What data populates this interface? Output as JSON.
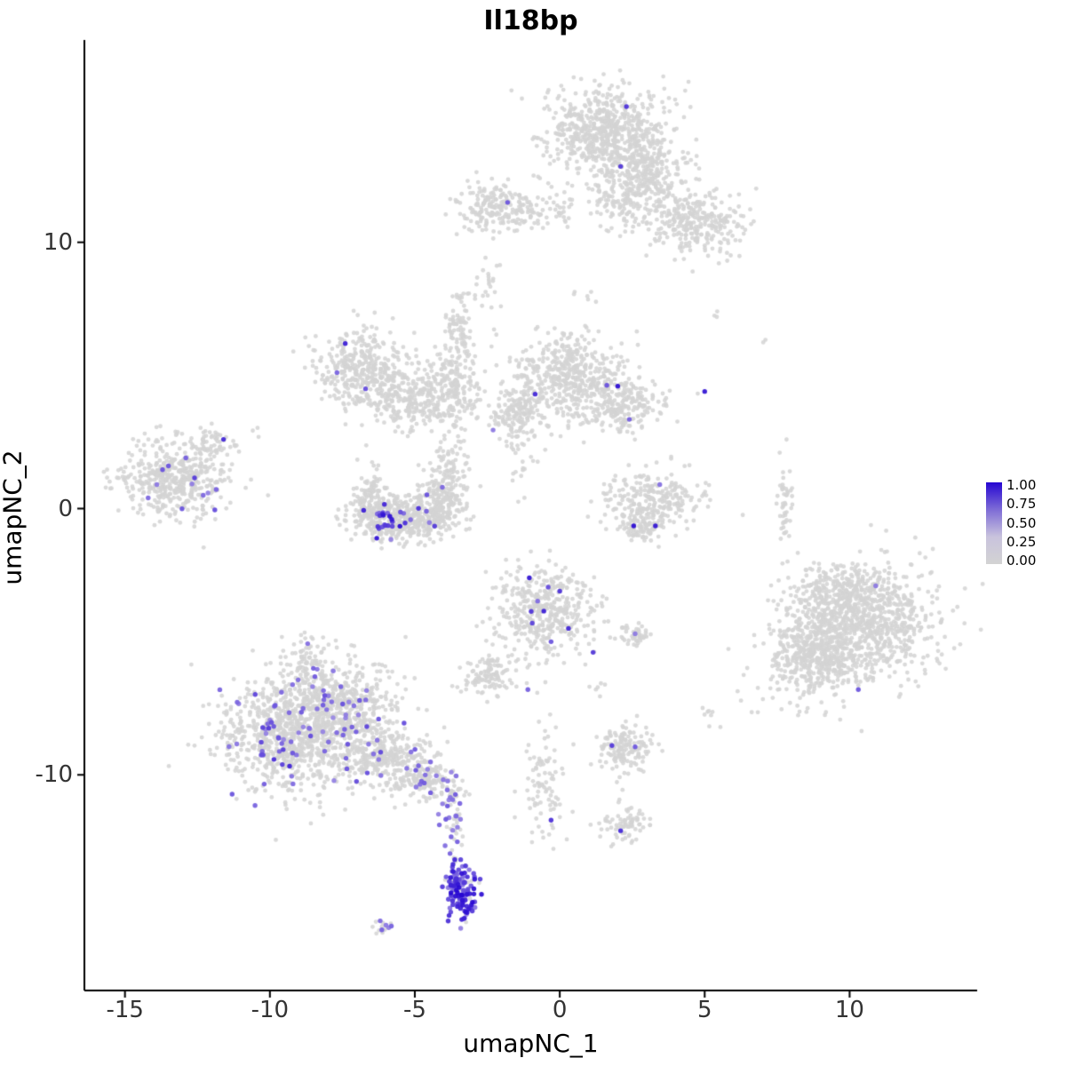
{
  "chart_data": {
    "type": "scatter",
    "title": "Il18bp",
    "xlabel": "umapNC_1",
    "ylabel": "umapNC_2",
    "background": "#ffffff",
    "grid": false,
    "x_domain": [
      -16.4,
      14.4
    ],
    "y_domain": [
      -18.1,
      17.6
    ],
    "xticks": [
      "-15",
      "-10",
      "-5",
      "0",
      "5",
      "10"
    ],
    "xtick_values": [
      -15,
      -10,
      -5,
      0,
      5,
      10
    ],
    "yticks": [
      "-10",
      "0",
      "10"
    ],
    "ytick_values": [
      -10,
      0,
      10
    ],
    "point_color_zero": "#d4d4d4",
    "color_low": "#c4b8ea",
    "color_high": "#2606d2",
    "legend": {
      "labels": [
        "1.00",
        "0.75",
        "0.50",
        "0.25",
        "0.00"
      ],
      "gradient_stops": [
        "#2606d2",
        "#7e6cd6",
        "#c9c3dd",
        "#d3d3d3"
      ]
    },
    "clusters": [
      {
        "name": "top-main",
        "center": [
          1.6,
          14.2
        ],
        "sd": [
          1.05,
          0.85
        ],
        "n": 650,
        "expr_frac": 0,
        "expr_range": [
          0,
          0
        ]
      },
      {
        "name": "top-right-ext",
        "center": [
          3.0,
          12.6
        ],
        "sd": [
          0.75,
          0.75
        ],
        "n": 260,
        "expr_frac": 0,
        "expr_range": [
          0,
          0
        ]
      },
      {
        "name": "top-lower-right",
        "center": [
          4.7,
          10.7
        ],
        "sd": [
          0.85,
          0.6
        ],
        "n": 300,
        "expr_frac": 0,
        "expr_range": [
          0,
          0
        ]
      },
      {
        "name": "top-trail",
        "center": [
          2.1,
          11.7
        ],
        "sd": [
          0.5,
          0.6
        ],
        "n": 110,
        "expr_frac": 0,
        "expr_range": [
          0,
          0
        ]
      },
      {
        "name": "top-left-small",
        "center": [
          -2.2,
          11.3
        ],
        "sd": [
          0.75,
          0.45
        ],
        "n": 200,
        "expr_frac": 0,
        "expr_range": [
          0,
          0
        ]
      },
      {
        "name": "top-bridge",
        "center": [
          -0.4,
          11.2
        ],
        "sd": [
          0.7,
          0.35
        ],
        "n": 50,
        "expr_frac": 0,
        "expr_range": [
          0,
          0
        ]
      },
      {
        "name": "mid-main",
        "center": [
          0.3,
          4.9
        ],
        "sd": [
          1.0,
          0.85
        ],
        "n": 520,
        "expr_frac": 0.004,
        "expr_range": [
          0.3,
          0.7
        ]
      },
      {
        "name": "mid-right-arm",
        "center": [
          2.2,
          3.9
        ],
        "sd": [
          0.7,
          0.5
        ],
        "n": 190,
        "expr_frac": 0,
        "expr_range": [
          0,
          0
        ]
      },
      {
        "name": "mid-left-dense",
        "center": [
          -1.5,
          3.5
        ],
        "sd": [
          0.45,
          0.45
        ],
        "n": 130,
        "expr_frac": 0,
        "expr_range": [
          0,
          0
        ]
      },
      {
        "name": "midleft-main",
        "center": [
          -6.8,
          5.2
        ],
        "sd": [
          0.85,
          0.75
        ],
        "n": 380,
        "expr_frac": 0.005,
        "expr_range": [
          0.25,
          0.6
        ]
      },
      {
        "name": "midleft-lower",
        "center": [
          -5.0,
          4.1
        ],
        "sd": [
          0.95,
          0.55
        ],
        "n": 280,
        "expr_frac": 0,
        "expr_range": [
          0,
          0
        ]
      },
      {
        "name": "midleft-right-arm",
        "center": [
          -3.6,
          4.8
        ],
        "sd": [
          0.45,
          0.7
        ],
        "n": 130,
        "expr_frac": 0,
        "expr_range": [
          0,
          0
        ]
      },
      {
        "name": "midleft-top-spur",
        "center": [
          -3.4,
          6.6
        ],
        "sd": [
          0.3,
          0.7
        ],
        "n": 70,
        "expr_frac": 0,
        "expr_range": [
          0,
          0
        ]
      },
      {
        "name": "hook-bottom",
        "center": [
          -5.3,
          -0.35
        ],
        "sd": [
          0.95,
          0.45
        ],
        "n": 420,
        "expr_frac": 0.015,
        "expr_range": [
          0.3,
          0.8
        ]
      },
      {
        "name": "hook-left-arm",
        "center": [
          -6.5,
          0.3
        ],
        "sd": [
          0.3,
          0.55
        ],
        "n": 140,
        "expr_frac": 0,
        "expr_range": [
          0,
          0
        ]
      },
      {
        "name": "hook-right-arm",
        "center": [
          -4.05,
          0.4
        ],
        "sd": [
          0.4,
          0.5
        ],
        "n": 140,
        "expr_frac": 0,
        "expr_range": [
          0,
          0
        ]
      },
      {
        "name": "hook-upper-trail",
        "center": [
          -3.8,
          1.9
        ],
        "sd": [
          0.3,
          0.6
        ],
        "n": 70,
        "expr_frac": 0,
        "expr_range": [
          0,
          0
        ]
      },
      {
        "name": "left-main",
        "center": [
          -13.3,
          1.1
        ],
        "sd": [
          0.95,
          0.75
        ],
        "n": 480,
        "expr_frac": 0.004,
        "expr_range": [
          0.3,
          0.6
        ]
      },
      {
        "name": "left-top-spur",
        "center": [
          -12.1,
          2.4
        ],
        "sd": [
          0.4,
          0.3
        ],
        "n": 55,
        "expr_frac": 0,
        "expr_range": [
          0,
          0
        ]
      },
      {
        "name": "right-mid-arc",
        "center": [
          3.2,
          0.3
        ],
        "sd": [
          0.85,
          0.55
        ],
        "n": 260,
        "expr_frac": 0.008,
        "expr_range": [
          0.25,
          0.6
        ]
      },
      {
        "name": "right-mid-tip",
        "center": [
          2.8,
          -0.7
        ],
        "sd": [
          0.4,
          0.25
        ],
        "n": 70,
        "expr_frac": 0,
        "expr_range": [
          0,
          0
        ]
      },
      {
        "name": "center-low-main",
        "center": [
          -0.5,
          -3.9
        ],
        "sd": [
          0.85,
          0.85
        ],
        "n": 430,
        "expr_frac": 0.012,
        "expr_range": [
          0.3,
          0.8
        ]
      },
      {
        "name": "center-low-satellite",
        "center": [
          -2.4,
          -6.3
        ],
        "sd": [
          0.4,
          0.4
        ],
        "n": 110,
        "expr_frac": 0,
        "expr_range": [
          0,
          0
        ]
      },
      {
        "name": "center-low-dot",
        "center": [
          2.6,
          -4.75
        ],
        "sd": [
          0.25,
          0.2
        ],
        "n": 40,
        "expr_frac": 0,
        "expr_range": [
          0,
          0
        ]
      },
      {
        "name": "right-big-a",
        "center": [
          10.5,
          -4.3
        ],
        "sd": [
          1.25,
          1.15
        ],
        "n": 850,
        "expr_frac": 0,
        "expr_range": [
          0,
          0
        ]
      },
      {
        "name": "right-big-b",
        "center": [
          8.8,
          -5.6
        ],
        "sd": [
          0.9,
          0.9
        ],
        "n": 430,
        "expr_frac": 0,
        "expr_range": [
          0,
          0
        ]
      },
      {
        "name": "right-big-c",
        "center": [
          9.6,
          -3.2
        ],
        "sd": [
          0.8,
          0.6
        ],
        "n": 220,
        "expr_frac": 0,
        "expr_range": [
          0,
          0
        ]
      },
      {
        "name": "right-streak",
        "center": [
          7.75,
          0.2
        ],
        "sd": [
          0.12,
          0.75
        ],
        "n": 45,
        "expr_frac": 0,
        "expr_range": [
          0,
          0
        ]
      },
      {
        "name": "botleft-a",
        "center": [
          -9.3,
          -8.6
        ],
        "sd": [
          1.15,
          1.05
        ],
        "n": 850,
        "expr_frac": 0.06,
        "expr_range": [
          0.25,
          0.65
        ]
      },
      {
        "name": "botleft-b",
        "center": [
          -7.5,
          -7.4
        ],
        "sd": [
          0.95,
          0.85
        ],
        "n": 480,
        "expr_frac": 0.05,
        "expr_range": [
          0.25,
          0.6
        ]
      },
      {
        "name": "botleft-c",
        "center": [
          -6.0,
          -9.3
        ],
        "sd": [
          0.85,
          0.55
        ],
        "n": 330,
        "expr_frac": 0.05,
        "expr_range": [
          0.25,
          0.65
        ]
      },
      {
        "name": "botleft-trail",
        "center": [
          -4.5,
          -10.3
        ],
        "sd": [
          0.6,
          0.4
        ],
        "n": 140,
        "expr_frac": 0.06,
        "expr_range": [
          0.3,
          0.6
        ]
      },
      {
        "name": "botleft-top-spur",
        "center": [
          -8.8,
          -5.9
        ],
        "sd": [
          0.4,
          0.6
        ],
        "n": 90,
        "expr_frac": 0.03,
        "expr_range": [
          0.3,
          0.6
        ]
      },
      {
        "name": "bottom-center-trail",
        "center": [
          -0.5,
          -10.4
        ],
        "sd": [
          0.4,
          1.1
        ],
        "n": 90,
        "expr_frac": 0,
        "expr_range": [
          0,
          0
        ]
      },
      {
        "name": "bottom-right-small",
        "center": [
          2.2,
          -9.1
        ],
        "sd": [
          0.55,
          0.45
        ],
        "n": 150,
        "expr_frac": 0,
        "expr_range": [
          0,
          0
        ]
      },
      {
        "name": "bottom-right-tiny",
        "center": [
          2.2,
          -11.9
        ],
        "sd": [
          0.4,
          0.3
        ],
        "n": 75,
        "expr_frac": 0,
        "expr_range": [
          0,
          0
        ]
      },
      {
        "name": "purple-streak-upper",
        "center": [
          -3.6,
          -11.6
        ],
        "sd": [
          0.22,
          0.8
        ],
        "n": 55,
        "expr_frac": 0.45,
        "expr_range": [
          0.25,
          0.6
        ]
      },
      {
        "name": "purple-streak-lower",
        "center": [
          -3.4,
          -14.2
        ],
        "sd": [
          0.28,
          0.6
        ],
        "n": 120,
        "expr_frac": 0.8,
        "expr_range": [
          0.3,
          1.0
        ]
      },
      {
        "name": "bottom-tiny-left",
        "center": [
          -6.05,
          -15.7
        ],
        "sd": [
          0.22,
          0.15
        ],
        "n": 15,
        "expr_frac": 0.3,
        "expr_range": [
          0.25,
          0.5
        ]
      },
      {
        "name": "noise-upper-diag",
        "center": [
          -2.5,
          8.3
        ],
        "sd": [
          0.25,
          0.55
        ],
        "n": 22,
        "expr_frac": 0,
        "expr_range": [
          0,
          0
        ]
      },
      {
        "name": "noise-c-spur",
        "center": [
          -3.5,
          7.5
        ],
        "sd": [
          0.2,
          0.5
        ],
        "n": 14,
        "expr_frac": 0,
        "expr_range": [
          0,
          0
        ]
      },
      {
        "name": "noise-mid-bridge",
        "center": [
          -1.3,
          2.1
        ],
        "sd": [
          0.3,
          0.6
        ],
        "n": 28,
        "expr_frac": 0,
        "expr_range": [
          0,
          0
        ]
      },
      {
        "name": "noise-a-b",
        "center": [
          0.7,
          8.1
        ],
        "sd": [
          0.3,
          0.3
        ],
        "n": 6,
        "expr_frac": 0,
        "expr_range": [
          0,
          0
        ]
      },
      {
        "name": "noise-right1",
        "center": [
          5.2,
          7.4
        ],
        "sd": [
          0.2,
          0.2
        ],
        "n": 3,
        "expr_frac": 0,
        "expr_range": [
          0,
          0
        ]
      },
      {
        "name": "noise-right2",
        "center": [
          7.0,
          6.2
        ],
        "sd": [
          0.15,
          0.15
        ],
        "n": 2,
        "expr_frac": 0,
        "expr_range": [
          0,
          0
        ]
      },
      {
        "name": "noise-left1",
        "center": [
          -10.6,
          2.9
        ],
        "sd": [
          0.2,
          0.2
        ],
        "n": 3,
        "expr_frac": 0,
        "expr_range": [
          0,
          0
        ]
      },
      {
        "name": "noise-low-right",
        "center": [
          5.1,
          -7.7
        ],
        "sd": [
          0.3,
          0.3
        ],
        "n": 8,
        "expr_frac": 0,
        "expr_range": [
          0,
          0
        ]
      },
      {
        "name": "noise-low-mid",
        "center": [
          1.4,
          -6.9
        ],
        "sd": [
          0.25,
          0.25
        ],
        "n": 6,
        "expr_frac": 0,
        "expr_range": [
          0,
          0
        ]
      }
    ],
    "hotspots": [
      {
        "name": "hook-hotspot",
        "center": [
          -5.85,
          -0.45
        ],
        "sd": [
          0.38,
          0.28
        ],
        "n": 22,
        "range": [
          0.45,
          1.0
        ]
      },
      {
        "name": "botleft-hotspot",
        "center": [
          -9.9,
          -8.8
        ],
        "sd": [
          0.28,
          0.5
        ],
        "n": 14,
        "range": [
          0.4,
          0.85
        ]
      },
      {
        "name": "deep-bottom-hotspot",
        "center": [
          -3.35,
          -14.9
        ],
        "sd": [
          0.18,
          0.3
        ],
        "n": 18,
        "range": [
          0.7,
          1.0
        ]
      }
    ],
    "highlight_points": [
      [
        2.3,
        15.1,
        0.75
      ],
      [
        2.1,
        12.85,
        0.7
      ],
      [
        -1.8,
        11.5,
        0.55
      ],
      [
        2.0,
        4.6,
        0.95
      ],
      [
        -0.85,
        4.3,
        0.8
      ],
      [
        -2.3,
        2.95,
        0.35
      ],
      [
        5.0,
        4.4,
        0.9
      ],
      [
        2.4,
        3.35,
        0.5
      ],
      [
        -7.4,
        6.2,
        0.85
      ],
      [
        -6.7,
        4.5,
        0.6
      ],
      [
        -4.05,
        0.8,
        0.45
      ],
      [
        -4.6,
        -0.1,
        0.5
      ],
      [
        -13.5,
        1.6,
        0.55
      ],
      [
        -12.9,
        1.9,
        0.5
      ],
      [
        -12.6,
        1.15,
        0.7
      ],
      [
        -14.2,
        0.4,
        0.45
      ],
      [
        -11.9,
        -0.05,
        0.6
      ],
      [
        -11.6,
        2.6,
        0.8
      ],
      [
        -13.9,
        0.9,
        0.35
      ],
      [
        -12.3,
        0.5,
        0.45
      ],
      [
        2.55,
        -0.65,
        0.95
      ],
      [
        3.3,
        -0.65,
        0.9
      ],
      [
        3.45,
        0.9,
        0.4
      ],
      [
        -1.05,
        -2.6,
        0.9
      ],
      [
        0.0,
        -3.1,
        0.75
      ],
      [
        -0.55,
        -3.85,
        0.85
      ],
      [
        -0.95,
        -4.3,
        0.65
      ],
      [
        0.3,
        -4.5,
        0.8
      ],
      [
        -0.3,
        -5.0,
        0.55
      ],
      [
        1.15,
        -5.4,
        0.7
      ],
      [
        2.6,
        -4.7,
        0.35
      ],
      [
        -1.1,
        -6.8,
        0.5
      ],
      [
        -0.4,
        -2.95,
        0.6
      ],
      [
        10.9,
        -2.9,
        0.35
      ],
      [
        10.3,
        -6.8,
        0.55
      ],
      [
        -0.3,
        -11.7,
        0.75
      ],
      [
        1.8,
        -8.9,
        0.7
      ],
      [
        2.6,
        -8.95,
        0.55
      ],
      [
        2.1,
        -12.1,
        0.8
      ],
      [
        -8.5,
        -6.0,
        0.5
      ],
      [
        -9.6,
        -6.9,
        0.45
      ]
    ]
  }
}
